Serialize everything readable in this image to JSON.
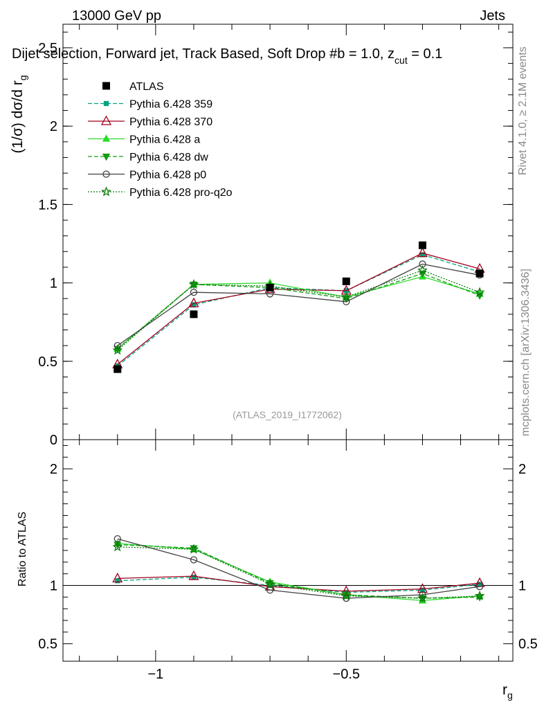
{
  "header": {
    "energy_label": "13000 GeV pp",
    "category_label": "Jets",
    "title_part1": "Dijet selection, Forward jet, Track Based, Soft Drop #b",
    "title_eq1": " = 1.0, z",
    "title_sub": "cut",
    "title_eq2": " = 0.1"
  },
  "side_labels": {
    "rivet": "Rivet 4.1.0, ≥ 2.1M events",
    "mcplots": "mcplots.cern.ch [arXiv:1306.3436]"
  },
  "watermark": "(ATLAS_2019_I1772062)",
  "colors": {
    "data": "#000000",
    "p359": "#00a381",
    "p370": "#a0001b",
    "a": "#2bdb2b",
    "dw": "#139c13",
    "p0": "#404040",
    "proq2o": "#0a7a0a"
  },
  "chart_data": [
    {
      "type": "line",
      "panel": "main",
      "ylabel_main": "(1/σ) dσ/d r",
      "ylabel_sub": "g",
      "xlim": [
        -1.243,
        -0.063
      ],
      "ylim": [
        0,
        2.65
      ],
      "yticks": [
        0,
        0.5,
        1,
        1.5,
        2,
        2.5
      ],
      "ytick_labels": [
        "0",
        "0.5",
        "1",
        "1.5",
        "2",
        "2.5"
      ],
      "x": [
        -1.1,
        -0.9,
        -0.7,
        -0.5,
        -0.3,
        -0.15
      ],
      "series": [
        {
          "name": "ATLAS",
          "key": "data",
          "values": [
            0.45,
            0.8,
            0.97,
            1.01,
            1.24,
            1.06
          ]
        },
        {
          "name": "Pythia 6.428 359",
          "key": "p359",
          "values": [
            0.47,
            0.86,
            0.97,
            0.95,
            1.18,
            1.07
          ]
        },
        {
          "name": "Pythia 6.428 370",
          "key": "p370",
          "values": [
            0.48,
            0.87,
            0.96,
            0.95,
            1.19,
            1.09
          ]
        },
        {
          "name": "Pythia 6.428 a",
          "key": "a",
          "values": [
            0.58,
            0.99,
            1.0,
            0.91,
            1.04,
            0.93
          ]
        },
        {
          "name": "Pythia 6.428 dw",
          "key": "dw",
          "values": [
            0.58,
            0.99,
            0.97,
            0.9,
            1.06,
            0.92
          ]
        },
        {
          "name": "Pythia 6.428 p0",
          "key": "p0",
          "values": [
            0.6,
            0.94,
            0.93,
            0.88,
            1.12,
            1.05
          ]
        },
        {
          "name": "Pythia 6.428 pro-q2o",
          "key": "proq2o",
          "values": [
            0.57,
            0.99,
            0.98,
            0.91,
            1.08,
            0.94
          ]
        }
      ]
    },
    {
      "type": "line",
      "panel": "ratio",
      "ylabel": "Ratio to ATLAS",
      "xlabel_main": "r",
      "xlabel_sub": "g",
      "ylim": [
        0.35,
        2.25
      ],
      "yticks": [
        0.5,
        1,
        2
      ],
      "ytick_labels": [
        "0.5",
        "1",
        "2"
      ],
      "xticks": [
        -1,
        -0.5
      ],
      "xtick_labels": [
        "−1",
        "−0.5"
      ],
      "x": [
        -1.1,
        -0.9,
        -0.7,
        -0.5,
        -0.3,
        -0.15
      ],
      "series": [
        {
          "name": "Pythia 6.428 359",
          "key": "p359",
          "values": [
            1.04,
            1.07,
            1.0,
            0.94,
            0.96,
            1.01
          ]
        },
        {
          "name": "Pythia 6.428 370",
          "key": "p370",
          "values": [
            1.06,
            1.08,
            0.99,
            0.95,
            0.97,
            1.02
          ]
        },
        {
          "name": "Pythia 6.428 a",
          "key": "a",
          "values": [
            1.36,
            1.31,
            1.03,
            0.92,
            0.87,
            0.91
          ]
        },
        {
          "name": "Pythia 6.428 dw",
          "key": "dw",
          "values": [
            1.35,
            1.32,
            1.02,
            0.92,
            0.89,
            0.9
          ]
        },
        {
          "name": "Pythia 6.428 p0",
          "key": "p0",
          "values": [
            1.4,
            1.22,
            0.96,
            0.89,
            0.92,
            0.99
          ]
        },
        {
          "name": "Pythia 6.428 pro-q2o",
          "key": "proq2o",
          "values": [
            1.33,
            1.31,
            1.01,
            0.91,
            0.89,
            0.91
          ]
        }
      ]
    }
  ]
}
